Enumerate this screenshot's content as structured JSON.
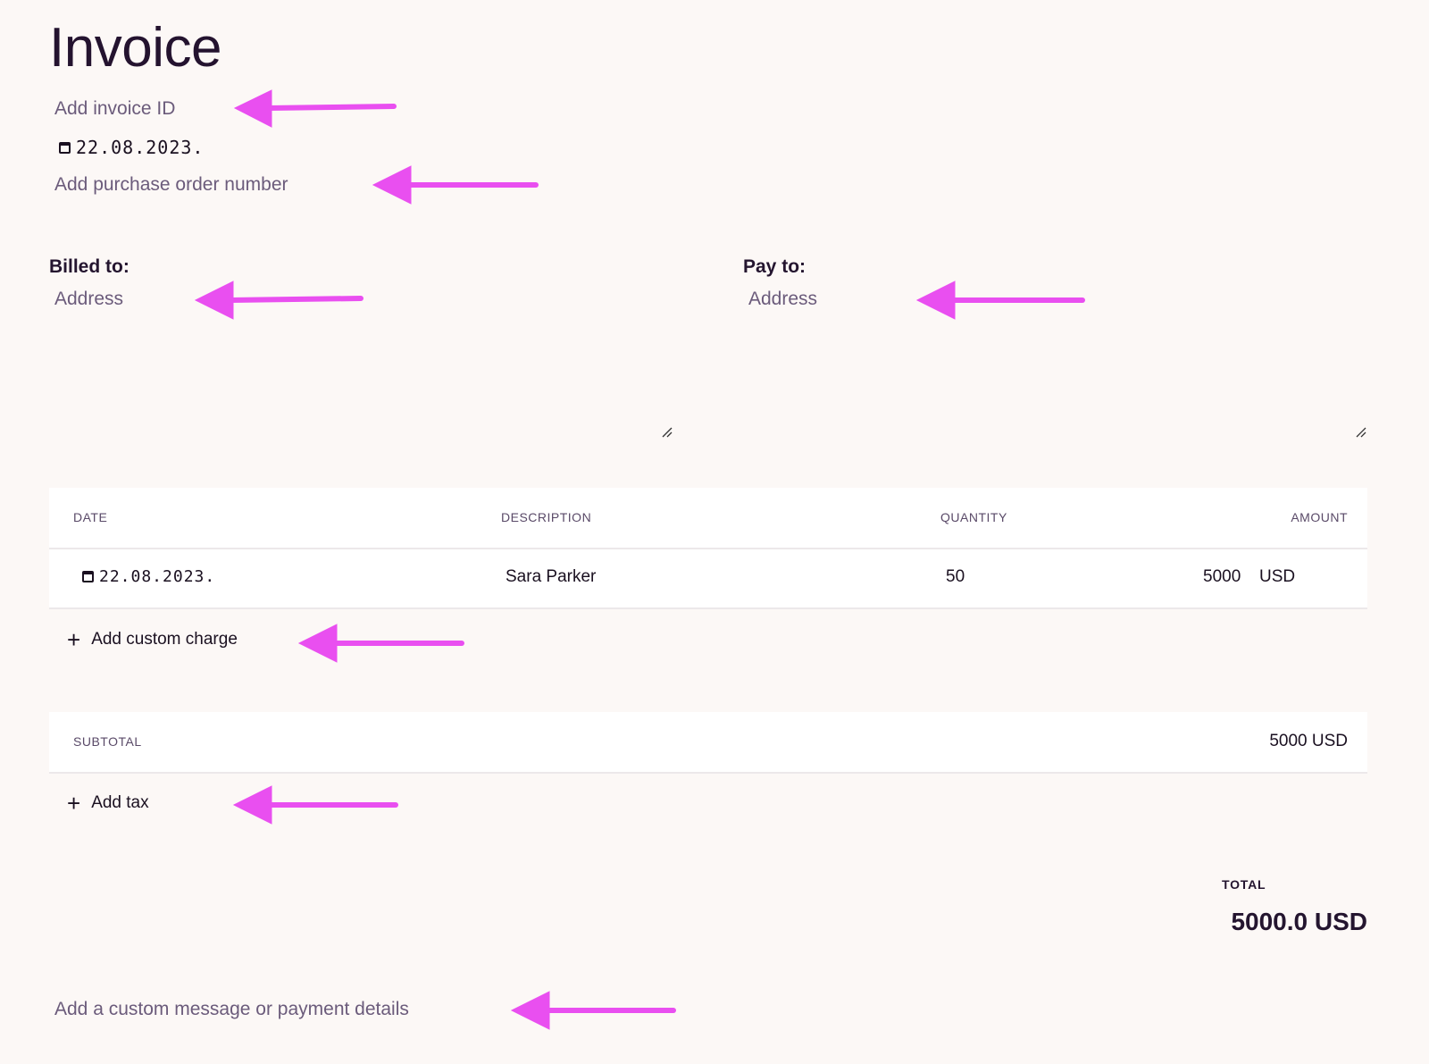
{
  "header": {
    "title": "Invoice",
    "invoice_id_placeholder": "Add invoice ID",
    "date": "22.08.2023.",
    "purchase_order_placeholder": "Add purchase order number"
  },
  "billed_to": {
    "label": "Billed to:",
    "placeholder": "Address"
  },
  "pay_to": {
    "label": "Pay to:",
    "placeholder": "Address"
  },
  "table": {
    "columns": [
      "DATE",
      "DESCRIPTION",
      "QUANTITY",
      "AMOUNT"
    ],
    "rows": [
      {
        "date": "22.08.2023.",
        "description": "Sara Parker",
        "quantity": "50",
        "amount": "5000",
        "currency": "USD"
      }
    ],
    "add_charge_label": "Add custom charge"
  },
  "subtotal": {
    "label": "SUBTOTAL",
    "value": "5000 USD"
  },
  "add_tax_label": "Add tax",
  "total": {
    "label": "TOTAL",
    "value": "5000.0 USD"
  },
  "message_placeholder": "Add a custom message or payment details",
  "colors": {
    "annotation_arrow": "#e94ff0",
    "background": "#fcf8f6",
    "text": "#24152f",
    "placeholder": "#6b5b7b"
  }
}
